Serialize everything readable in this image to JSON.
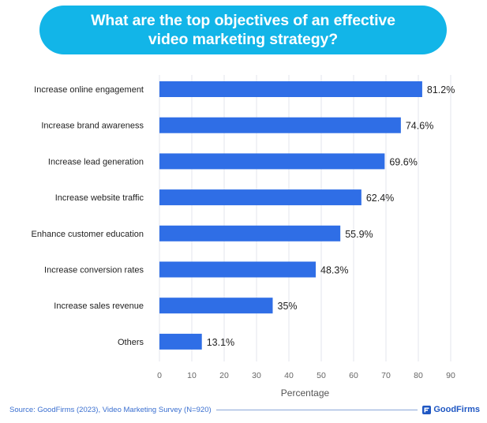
{
  "header": {
    "title": "What are the top objectives of an effective video marketing strategy?"
  },
  "chart_data": {
    "type": "bar",
    "orientation": "horizontal",
    "title": "What are the top objectives of an effective video marketing strategy?",
    "xlabel": "Percentage",
    "ylabel": "",
    "xlim": [
      0,
      90
    ],
    "xticks": [
      0,
      10,
      20,
      30,
      40,
      50,
      60,
      70,
      80,
      90
    ],
    "grid": "vertical",
    "bar_color": "#2f6ee6",
    "categories": [
      "Increase online engagement",
      "Increase brand awareness",
      "Increase lead generation",
      "Increase website traffic",
      "Enhance customer education",
      "Increase conversion rates",
      "Increase sales revenue",
      "Others"
    ],
    "values": [
      81.2,
      74.6,
      69.6,
      62.4,
      55.9,
      48.3,
      35,
      13.1
    ],
    "value_labels": [
      "81.2%",
      "74.6%",
      "69.6%",
      "62.4%",
      "55.9%",
      "48.3%",
      "35%",
      "13.1%"
    ]
  },
  "footer": {
    "source": "Source: GoodFirms (2023), Video Marketing Survey (N=920)",
    "brand": "GoodFirms"
  },
  "colors": {
    "title_bg": "#12b5e8",
    "bar": "#2f6ee6",
    "grid": "#e3e6ec",
    "brand": "#1f57c3"
  }
}
